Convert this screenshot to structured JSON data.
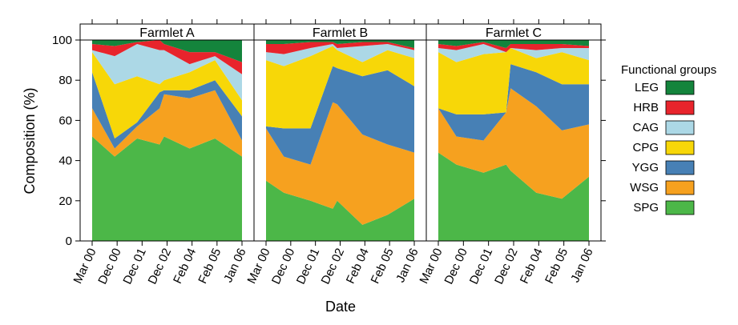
{
  "chart_data": {
    "type": "area",
    "stacked": true,
    "xlabel": "Date",
    "ylabel": "Composition (%)",
    "ylim": [
      0,
      100
    ],
    "yticks": [
      0,
      20,
      40,
      60,
      80,
      100
    ],
    "x_tick_labels": [
      "Mar 00",
      "Dec 00",
      "Dec 01",
      "Dec 02",
      "Feb 04",
      "Feb 05",
      "Jan 06"
    ],
    "legend": {
      "title": "Functional groups",
      "placement": "right",
      "entries": [
        {
          "name": "LEG",
          "color": "#14843c"
        },
        {
          "name": "HRB",
          "color": "#e8242c"
        },
        {
          "name": "CAG",
          "color": "#acd8e6"
        },
        {
          "name": "CPG",
          "color": "#f7d708"
        },
        {
          "name": "YGG",
          "color": "#4780b5"
        },
        {
          "name": "WSG",
          "color": "#f6a11f"
        },
        {
          "name": "SPG",
          "color": "#4cb748"
        }
      ]
    },
    "panels": [
      {
        "title": "Farmlet A",
        "x": [
          0,
          0.15,
          0.3,
          0.45,
          0.48,
          0.65,
          0.82,
          1.0
        ],
        "series": [
          {
            "name": "SPG",
            "values": [
              52,
              42,
              51,
              48,
              52,
              46,
              51,
              42
            ]
          },
          {
            "name": "WSG",
            "values": [
              14,
              4,
              6,
              18,
              21,
              25,
              24,
              8
            ]
          },
          {
            "name": "YGG",
            "values": [
              18,
              5,
              2,
              8,
              2,
              4,
              5,
              12
            ]
          },
          {
            "name": "CPG",
            "values": [
              10,
              27,
              23,
              4,
              5,
              9,
              10,
              8
            ]
          },
          {
            "name": "CAG",
            "values": [
              1,
              14,
              16,
              17,
              15,
              4,
              2,
              13
            ]
          },
          {
            "name": "HRB",
            "values": [
              3,
              5,
              1,
              5,
              3,
              6,
              2,
              6
            ]
          },
          {
            "name": "LEG",
            "values": [
              2,
              3,
              1,
              0,
              2,
              6,
              6,
              11
            ]
          }
        ]
      },
      {
        "title": "Farmlet B",
        "x": [
          0,
          0.12,
          0.3,
          0.45,
          0.48,
          0.65,
          0.82,
          1.0
        ],
        "series": [
          {
            "name": "SPG",
            "values": [
              30,
              24,
              20,
              16,
              20,
              8,
              13,
              21
            ]
          },
          {
            "name": "WSG",
            "values": [
              26,
              18,
              18,
              53,
              48,
              45,
              35,
              23
            ]
          },
          {
            "name": "YGG",
            "values": [
              1,
              14,
              18,
              18,
              18,
              29,
              37,
              33
            ]
          },
          {
            "name": "CPG",
            "values": [
              33,
              31,
              36,
              10,
              9,
              7,
              10,
              14
            ]
          },
          {
            "name": "CAG",
            "values": [
              4,
              6,
              4,
              1,
              1,
              8,
              3,
              4
            ]
          },
          {
            "name": "HRB",
            "values": [
              4,
              5,
              3,
              1,
              2,
              2,
              1,
              1
            ]
          },
          {
            "name": "LEG",
            "values": [
              2,
              2,
              1,
              1,
              2,
              1,
              1,
              4
            ]
          }
        ]
      },
      {
        "title": "Farmlet C",
        "x": [
          0,
          0.12,
          0.3,
          0.45,
          0.48,
          0.65,
          0.82,
          1.0
        ],
        "series": [
          {
            "name": "SPG",
            "values": [
              44,
              38,
              34,
              38,
              35,
              24,
              21,
              32
            ]
          },
          {
            "name": "WSG",
            "values": [
              22,
              14,
              16,
              26,
              41,
              43,
              34,
              26
            ]
          },
          {
            "name": "YGG",
            "values": [
              0,
              11,
              13,
              0,
              12,
              17,
              23,
              20
            ]
          },
          {
            "name": "CPG",
            "values": [
              28,
              26,
              30,
              30,
              8,
              7,
              16,
              12
            ]
          },
          {
            "name": "CAG",
            "values": [
              2,
              6,
              5,
              0,
              0,
              4,
              2,
              6
            ]
          },
          {
            "name": "HRB",
            "values": [
              2,
              2,
              1,
              2,
              2,
              3,
              2,
              1
            ]
          },
          {
            "name": "LEG",
            "values": [
              2,
              3,
              1,
              4,
              2,
              2,
              2,
              3
            ]
          }
        ]
      }
    ]
  }
}
